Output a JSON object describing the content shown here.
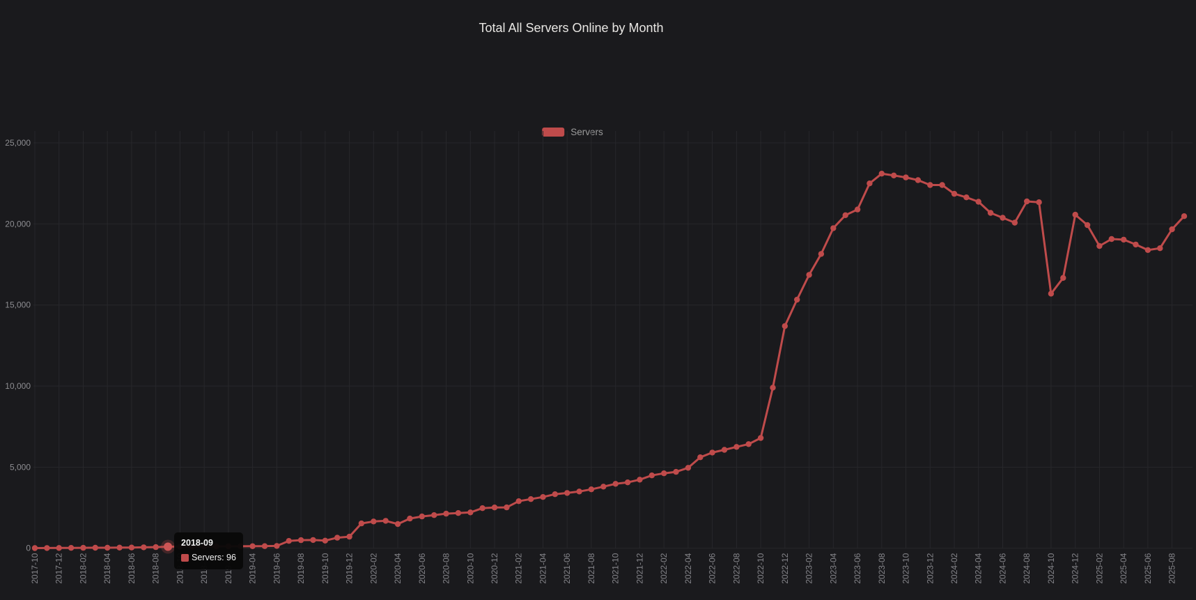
{
  "title": "Total All Servers Online by Month",
  "legend": {
    "label": "Servers"
  },
  "tooltip": {
    "header": "2018-09",
    "text": "Servers: 96"
  },
  "colors": {
    "background": "#1a1a1d",
    "grid": "#27272b",
    "axis_label": "#8d8d91",
    "title": "#e8e6e3",
    "line": "#bf4b4b",
    "hover_marker": "#cd5555",
    "legend_label": "#9b9b9b",
    "tooltip_bg": "#080808",
    "tooltip_text": "#f2f2f2"
  },
  "chart_data": {
    "type": "line",
    "title": "Total All Servers Online by Month",
    "legend_entries": [
      "Servers"
    ],
    "legend_position": "top-center",
    "grid": true,
    "ylim": [
      0,
      25000
    ],
    "yticks": [
      0,
      5000,
      10000,
      15000,
      20000,
      25000
    ],
    "x_label_step": 2,
    "x": [
      "2017-10",
      "2017-11",
      "2017-12",
      "2018-01",
      "2018-02",
      "2018-03",
      "2018-04",
      "2018-05",
      "2018-06",
      "2018-07",
      "2018-08",
      "2018-09",
      "2018-10",
      "2018-11",
      "2018-12",
      "2019-01",
      "2019-02",
      "2019-03",
      "2019-04",
      "2019-05",
      "2019-06",
      "2019-07",
      "2019-08",
      "2019-09",
      "2019-10",
      "2019-11",
      "2019-12",
      "2020-01",
      "2020-02",
      "2020-03",
      "2020-04",
      "2020-05",
      "2020-06",
      "2020-07",
      "2020-08",
      "2020-09",
      "2020-10",
      "2020-11",
      "2020-12",
      "2021-01",
      "2021-02",
      "2021-03",
      "2021-04",
      "2021-05",
      "2021-06",
      "2021-07",
      "2021-08",
      "2021-09",
      "2021-10",
      "2021-11",
      "2021-12",
      "2022-01",
      "2022-02",
      "2022-03",
      "2022-04",
      "2022-05",
      "2022-06",
      "2022-07",
      "2022-08",
      "2022-09",
      "2022-10",
      "2022-11",
      "2022-12",
      "2023-01",
      "2023-02",
      "2023-03",
      "2023-04",
      "2023-05",
      "2023-06",
      "2023-07",
      "2023-08",
      "2023-09",
      "2023-10",
      "2023-11",
      "2023-12",
      "2024-01",
      "2024-02",
      "2024-03",
      "2024-04",
      "2024-05",
      "2024-06",
      "2024-07",
      "2024-08",
      "2024-09",
      "2024-10",
      "2024-11",
      "2024-12",
      "2025-01",
      "2025-02",
      "2025-03",
      "2025-04",
      "2025-05",
      "2025-06",
      "2025-07",
      "2025-08",
      "2025-09"
    ],
    "series": [
      {
        "name": "Servers",
        "values": [
          8,
          12,
          16,
          20,
          24,
          28,
          32,
          38,
          45,
          55,
          70,
          96,
          100,
          104,
          108,
          112,
          116,
          120,
          124,
          128,
          140,
          450,
          500,
          505,
          470,
          650,
          715,
          1530,
          1650,
          1690,
          1490,
          1830,
          1960,
          2040,
          2130,
          2170,
          2210,
          2470,
          2515,
          2520,
          2900,
          3030,
          3160,
          3330,
          3410,
          3500,
          3630,
          3800,
          3970,
          4060,
          4230,
          4490,
          4620,
          4710,
          4960,
          5610,
          5900,
          6070,
          6250,
          6420,
          6800,
          9900,
          13700,
          15330,
          16860,
          18150,
          19740,
          20540,
          20890,
          22500,
          23100,
          22990,
          22870,
          22700,
          22400,
          22400,
          21860,
          21640,
          21370,
          20680,
          20380,
          20080,
          21390,
          21340,
          15700,
          16670,
          20570,
          19930,
          18640,
          19070,
          19030,
          18730,
          18390,
          18500,
          19670,
          20480
        ]
      }
    ],
    "hover": {
      "x": "2018-09",
      "value": 96
    }
  }
}
